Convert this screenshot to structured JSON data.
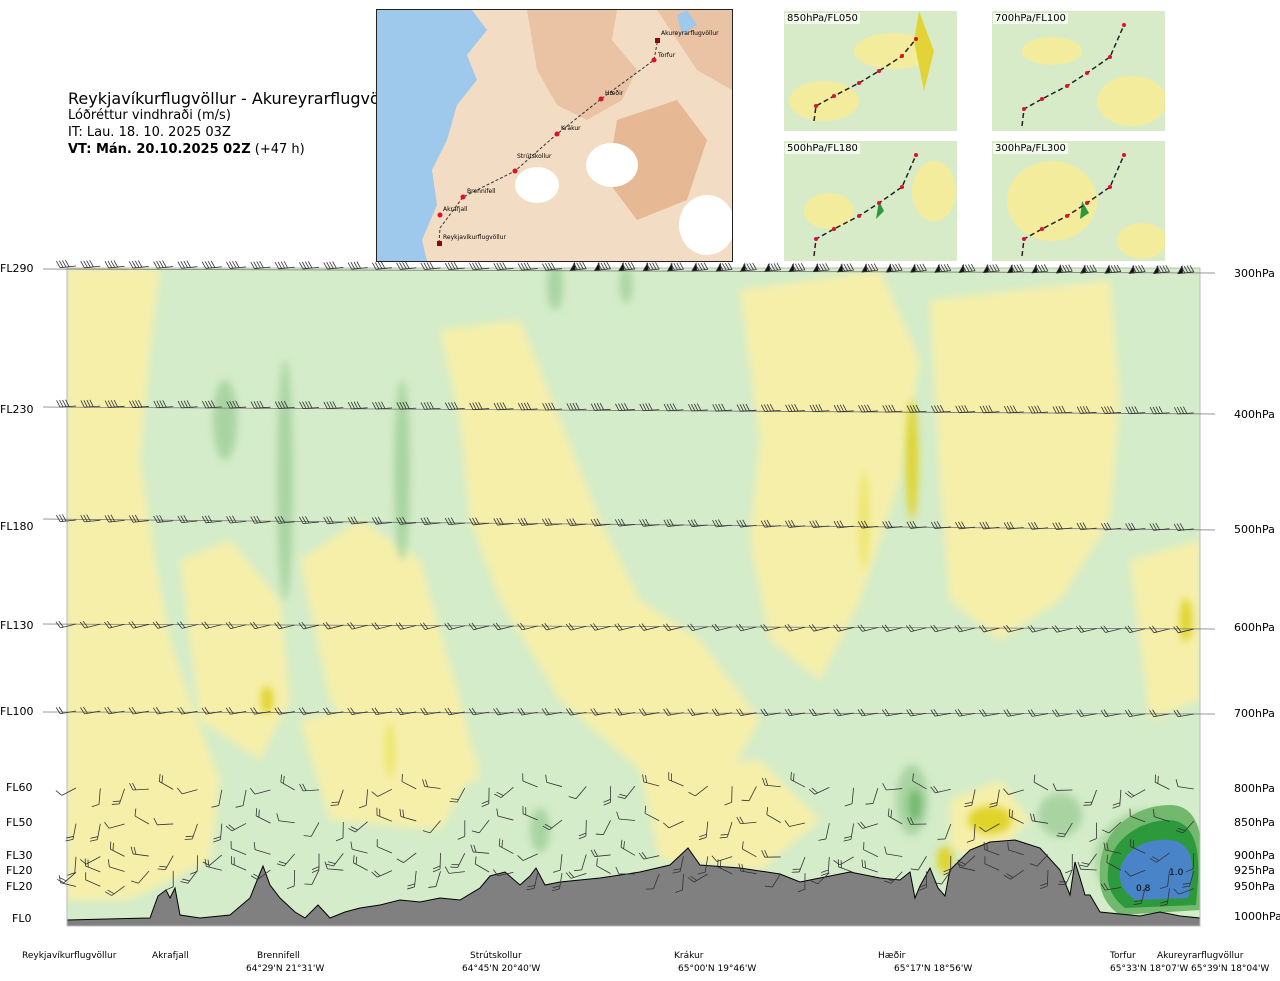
{
  "header": {
    "route": "Reykjavíkurflugvöllur - Akureyrarflugvöllur",
    "quantity": "Lóðréttur vindhraði (m/s)",
    "issue_time": "IT: Lau. 18. 10. 2025 03Z",
    "valid_time_bold": "VT: Mán. 20.10.2025 02Z",
    "valid_time_offset": " (+47 h)"
  },
  "route_map": {
    "points": [
      "Akureyrarflugvöllur",
      "Torfur",
      "Hæðir",
      "Krákur",
      "Strútskollur",
      "Brennifell",
      "Akrafjall",
      "Reykjavíkurflugvöllur"
    ]
  },
  "level_maps": [
    {
      "label": "850hPa/FL050"
    },
    {
      "label": "700hPa/FL100"
    },
    {
      "label": "500hPa/FL180"
    },
    {
      "label": "300hPa/FL300"
    }
  ],
  "chart_data": {
    "type": "heatmap",
    "title": "Lóðréttur vindhraði (m/s)",
    "flight_levels": [
      "FL290",
      "FL230",
      "FL180",
      "FL130",
      "FL100",
      "FL60",
      "FL50",
      "FL30",
      "FL20",
      "FL20",
      "FL0"
    ],
    "pressure_levels": [
      "300hPa",
      "400hPa",
      "500hPa",
      "600hPa",
      "700hPa",
      "800hPa",
      "850hPa",
      "900hPa",
      "925hPa",
      "950hPa",
      "1000hPa"
    ],
    "waypoints": [
      {
        "name": "Reykjavíkurflugvöllur",
        "coord": ""
      },
      {
        "name": "Akrafjall",
        "coord": ""
      },
      {
        "name": "Brennifell",
        "coord": "64°29'N 21°31'W"
      },
      {
        "name": "Strútskollur",
        "coord": "64°45'N 20°40'W"
      },
      {
        "name": "Krákur",
        "coord": "65°00'N 19°46'W"
      },
      {
        "name": "Hæðir",
        "coord": "65°17'N 18°56'W"
      },
      {
        "name": "Torfur",
        "coord": "65°33'N 18°07'W"
      },
      {
        "name": "Akureyrarflugvöllur",
        "coord": "65°39'N 18°04'W"
      }
    ],
    "contour_labels": [
      "0.8",
      "1.0"
    ],
    "colors": {
      "weak_down": "#f6efaa",
      "down": "#ece66a",
      "strong_down": "#e0d32a",
      "near_zero": "#fbfbe6",
      "weak_up": "#d4ecc9",
      "up": "#a9d4a2",
      "mid_up": "#72b96e",
      "strong_up": "#2c9a3c",
      "very_strong_up": "#4a84c8",
      "terrain": "#808080"
    }
  }
}
